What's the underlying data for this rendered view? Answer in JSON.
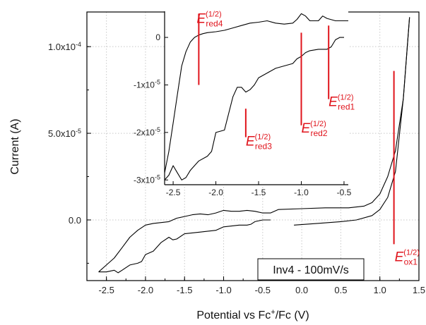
{
  "chart_data": {
    "type": "line",
    "xlabel": "Potential vs Fc",
    "xlabel_sup": "+",
    "xlabel_tail": "/Fc (V)",
    "ylabel": "Current (A)",
    "legend": "Inv4 - 100mV/s",
    "grid": true,
    "xlim": [
      -2.75,
      1.5
    ],
    "ylim": [
      -3.5e-05,
      0.00012
    ],
    "xticks": [
      -2.5,
      -2.0,
      -1.5,
      -1.0,
      -0.5,
      0.0,
      0.5,
      1.0,
      1.5
    ],
    "xtick_labels": [
      "-2.5",
      "-2.0",
      "-1.5",
      "-1.0",
      "-0.5",
      "0.0",
      "0.5",
      "1.0",
      "1.5"
    ],
    "yticks": [
      0,
      5e-05,
      0.0001
    ],
    "ytick_labels": [
      "0.0",
      "5.0x10-5",
      "1.0x10-4"
    ],
    "series": [
      {
        "x": [
          -2.6,
          -2.5,
          -2.4,
          -2.3,
          -2.2,
          -2.1,
          -2.0,
          -1.9,
          -1.8,
          -1.7,
          -1.6,
          -1.5,
          -1.4,
          -1.3,
          -1.2,
          -1.1,
          -1.0,
          -0.9,
          -0.8,
          -0.7,
          -0.6,
          -0.5,
          -0.4,
          -0.3,
          0.0,
          0.3,
          0.6,
          0.8,
          0.9,
          1.0,
          1.1,
          1.2,
          1.3,
          1.38
        ],
        "y": [
          -3e-05,
          -2.6e-05,
          -2.2e-05,
          -1.6e-05,
          -1e-05,
          -6e-06,
          -3e-06,
          -2e-06,
          -1.5e-06,
          -1e-06,
          1e-06,
          2e-06,
          3e-06,
          3.5e-06,
          3e-06,
          4e-06,
          5.5e-06,
          5e-06,
          5e-06,
          5.5e-06,
          5e-06,
          4e-06,
          4e-06,
          6e-06,
          6.5e-06,
          7e-06,
          7e-06,
          8e-06,
          1e-05,
          1.5e-05,
          2.5e-05,
          4e-05,
          7e-05,
          0.000117
        ]
      },
      {
        "x": [
          1.38,
          1.3,
          1.2,
          1.1,
          1.0,
          0.9,
          0.7,
          0.5,
          0.2,
          -0.1
        ],
        "y": [
          0.000117,
          7e-05,
          2.8e-05,
          1.3e-05,
          6e-06,
          2.5e-06,
          0.0,
          -1e-06,
          -2e-06,
          -3e-06
        ]
      },
      {
        "x": [
          -0.4,
          -0.5,
          -0.6,
          -0.65,
          -0.7,
          -0.8,
          -0.9,
          -1.0,
          -1.1,
          -1.2,
          -1.3,
          -1.5,
          -1.6,
          -1.65,
          -1.7,
          -1.8,
          -1.9,
          -2.0,
          -2.05,
          -2.1,
          -2.2,
          -2.3,
          -2.35,
          -2.4,
          -2.5,
          -2.6
        ],
        "y": [
          0.0,
          0.0,
          -1e-06,
          -2.5e-06,
          -3e-06,
          -3e-06,
          -3.5e-06,
          -4e-06,
          -6e-06,
          -6.5e-06,
          -7e-06,
          -8e-06,
          -1.1e-05,
          -1.15e-05,
          -1e-05,
          -1.3e-05,
          -1.8e-05,
          -2e-05,
          -2.4e-05,
          -2.5e-05,
          -2.6e-05,
          -2.9e-05,
          -3.05e-05,
          -2.9e-05,
          -3e-05,
          -3e-05
        ]
      }
    ],
    "inset": {
      "xlim": [
        -2.6,
        -0.45
      ],
      "ylim": [
        -3.1e-05,
        5.5e-06
      ],
      "xticks": [
        -2.5,
        -2.0,
        -1.5,
        -1.0,
        -0.5
      ],
      "xtick_labels": [
        "-2.5",
        "-2.0",
        "-1.5",
        "-1.0",
        "-0.5"
      ],
      "yticks": [
        0,
        -1e-05,
        -2e-05,
        -3e-05
      ],
      "ytick_labels": [
        "0",
        "-1x10-5",
        "-2x10-5",
        "-3x10-5"
      ],
      "series": [
        {
          "x": [
            -2.6,
            -2.55,
            -2.5,
            -2.45,
            -2.4,
            -2.35,
            -2.3,
            -2.25,
            -2.2,
            -2.15,
            -2.1,
            -2.0,
            -1.9,
            -1.8,
            -1.7,
            -1.6,
            -1.5,
            -1.4,
            -1.3,
            -1.2,
            -1.1,
            -1.05,
            -1.0,
            -0.95,
            -0.9,
            -0.8,
            -0.75,
            -0.7,
            -0.6,
            -0.5,
            -0.45
          ],
          "y": [
            -2.85e-05,
            -2.4e-05,
            -1.8e-05,
            -1.2e-05,
            -6e-06,
            -3e-06,
            -1e-06,
            0.0,
            5e-07,
            8e-07,
            1e-06,
            1.2e-06,
            1.5e-06,
            2e-06,
            2.5e-06,
            3e-06,
            3.2e-06,
            3.5e-06,
            3e-06,
            2.8e-06,
            3e-06,
            3.8e-06,
            5e-06,
            4.5e-06,
            3.5e-06,
            3.5e-06,
            4.5e-06,
            4e-06,
            3.5e-06,
            3.5e-06,
            3.5e-06
          ]
        },
        {
          "x": [
            -0.5,
            -0.55,
            -0.6,
            -0.65,
            -0.7,
            -0.8,
            -0.9,
            -0.95,
            -1.0,
            -1.05,
            -1.1,
            -1.2,
            -1.3,
            -1.4,
            -1.5,
            -1.55,
            -1.6,
            -1.65,
            -1.7,
            -1.75,
            -1.8,
            -1.85,
            -1.9,
            -2.0,
            -2.05,
            -2.1,
            -2.2,
            -2.25,
            -2.3,
            -2.35,
            -2.4,
            -2.45,
            -2.5,
            -2.55,
            -2.6
          ],
          "y": [
            0.0,
            0.0,
            -5e-07,
            -2e-06,
            -2.5e-06,
            -2.5e-06,
            -2.8e-06,
            -3.2e-06,
            -4e-06,
            -4.5e-06,
            -5.5e-06,
            -6e-06,
            -6.5e-06,
            -7.5e-06,
            -8.5e-06,
            -1e-05,
            -1.1e-05,
            -1.15e-05,
            -1.05e-05,
            -1.05e-05,
            -1.25e-05,
            -1.6e-05,
            -1.95e-05,
            -2e-05,
            -2.4e-05,
            -2.5e-05,
            -2.6e-05,
            -2.7e-05,
            -2.8e-05,
            -2.95e-05,
            -3e-05,
            -2.85e-05,
            -2.7e-05,
            -2.9e-05,
            -3e-05
          ]
        }
      ]
    },
    "annotations": [
      {
        "main": "E",
        "sup": "(1/2)",
        "sub": "red4",
        "x": -2.2,
        "y_low": -1e-05,
        "y_high": 5e-06
      },
      {
        "main": "E",
        "sup": "(1/2)",
        "sub": "red3",
        "x": -1.65,
        "y_low": -2.1e-05,
        "y_high": -1.5e-05
      },
      {
        "main": "E",
        "sup": "(1/2)",
        "sub": "red2",
        "x": -1.0,
        "y_low": -1.85e-05,
        "y_high": 1e-06
      },
      {
        "main": "E",
        "sup": "(1/2)",
        "sub": "red1",
        "x": -0.68,
        "y_low": -1.3e-05,
        "y_high": 2.5e-06
      },
      {
        "main": "E",
        "sup": "(1/2)",
        "sub": "ox1",
        "x": 1.18,
        "y_low": -1.4e-05,
        "y_high": 8.6e-05
      }
    ]
  }
}
